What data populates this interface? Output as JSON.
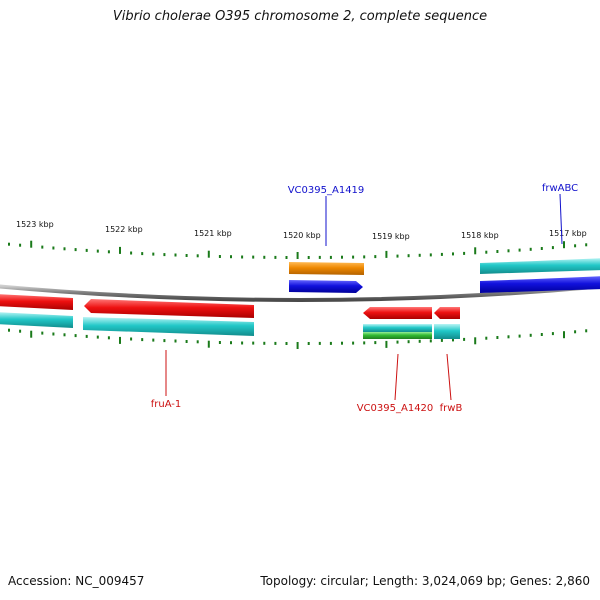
{
  "title": "Vibrio cholerae O395 chromosome 2, complete sequence",
  "footer": {
    "accession": "Accession: NC_009457",
    "summary": "Topology: circular; Length: 3,024,069 bp; Genes: 2,860"
  },
  "scale": {
    "unit": "kbp",
    "labels": [
      {
        "kbp": 1523,
        "text": "1523 kbp"
      },
      {
        "kbp": 1522,
        "text": "1522 kbp"
      },
      {
        "kbp": 1521,
        "text": "1521 kbp"
      },
      {
        "kbp": 1520,
        "text": "1520 kbp"
      },
      {
        "kbp": 1519,
        "text": "1519 kbp"
      },
      {
        "kbp": 1518,
        "text": "1518 kbp"
      },
      {
        "kbp": 1517,
        "text": "1517 kbp"
      }
    ]
  },
  "colors": {
    "backbone": "#8c8c8c",
    "cds_red": "#ee1111",
    "cds_blue": "#1111dd",
    "cds_orange": "#ee8800",
    "cds_cyan": "#22c8c8",
    "cds_green": "#33bb33",
    "tick": "#1a7a1a",
    "label_blue": "#1111cc",
    "label_red": "#cc1111"
  },
  "gene_labels": [
    {
      "id": "VC0395_A1419",
      "text": "VC0395_A1419",
      "strand": "plus"
    },
    {
      "id": "frwABC",
      "text": "frwABC",
      "strand": "plus"
    },
    {
      "id": "fruA-1",
      "text": "fruA-1",
      "strand": "minus"
    },
    {
      "id": "VC0395_A1420",
      "text": "VC0395_A1420",
      "strand": "minus"
    },
    {
      "id": "frwB",
      "text": "frwB",
      "strand": "minus"
    }
  ]
}
